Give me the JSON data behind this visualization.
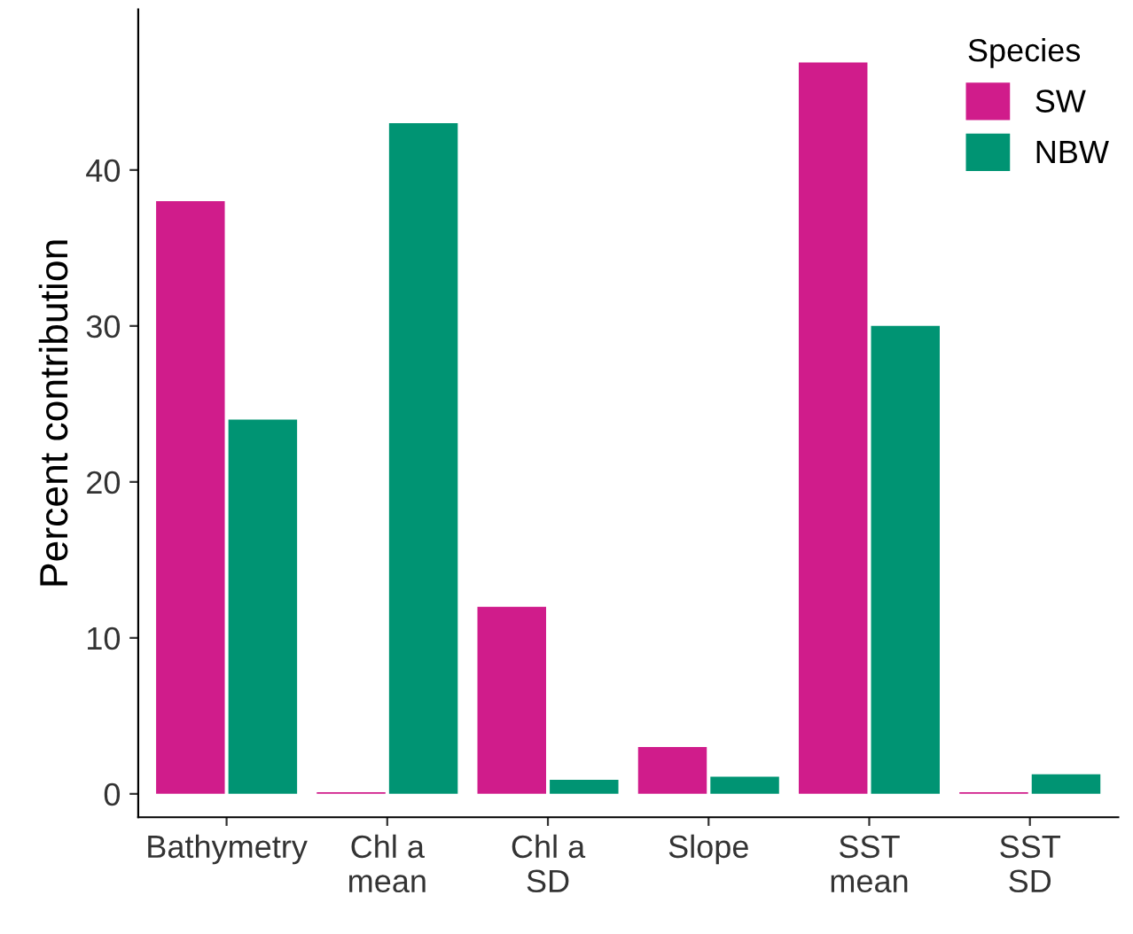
{
  "chart_data": {
    "type": "bar",
    "ylabel": "Percent contribution",
    "legend_title": "Species",
    "legend": "top right",
    "grid": false,
    "categories": [
      "Bathymetry",
      "Chl a\nmean",
      "Chl a\nSD",
      "Slope",
      "SST\nmean",
      "SST\nSD"
    ],
    "series": [
      {
        "name": "SW",
        "color": "#d01c8b",
        "values": [
          38,
          0.1,
          12,
          3,
          46.9,
          0.1
        ]
      },
      {
        "name": "NBW",
        "color": "#009473",
        "values": [
          24,
          43,
          0.9,
          1.1,
          30,
          1.25
        ]
      }
    ],
    "ylim": [
      -1.5,
      50.3
    ],
    "yticks": [
      0,
      10,
      20,
      30,
      40
    ]
  }
}
